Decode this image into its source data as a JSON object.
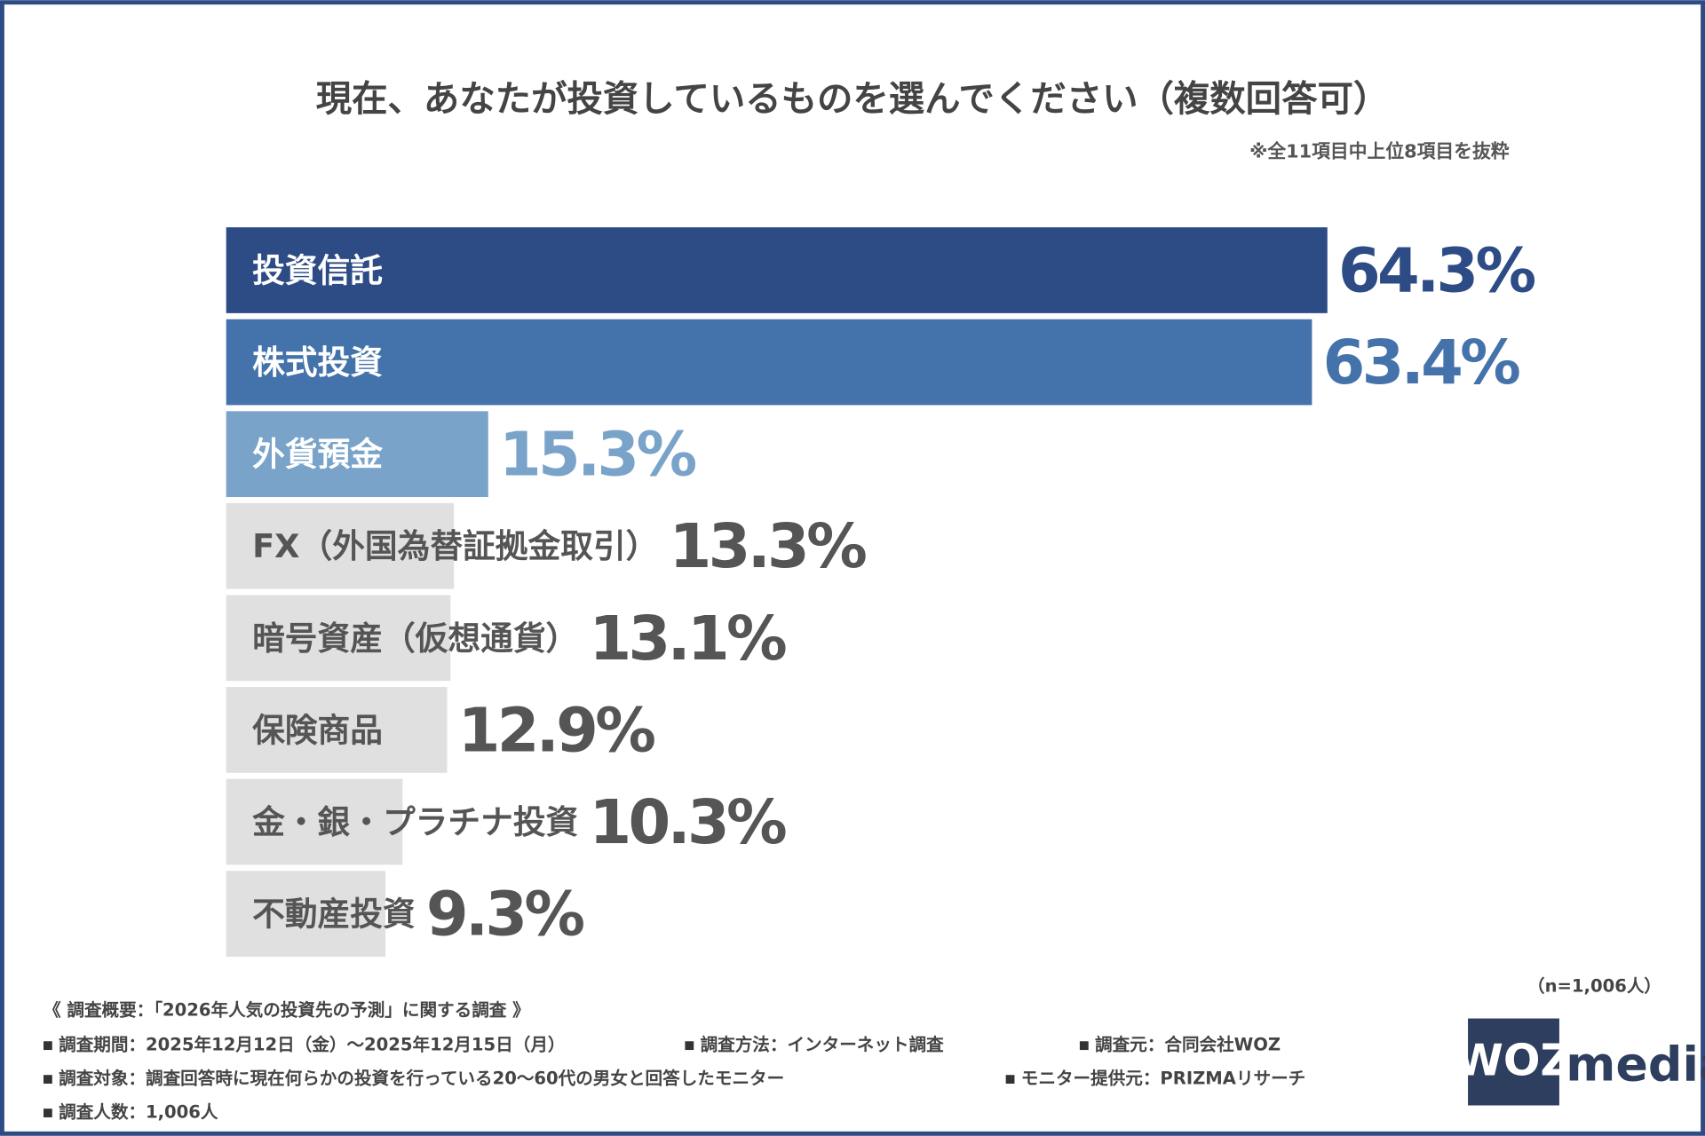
{
  "chart_data": {
    "type": "bar",
    "orientation": "horizontal",
    "title": "現在、あなたが投資しているものを選んでください（複数回答可）",
    "subtitle": "※全11項目中上位8項目を抜粋",
    "categories": [
      "投資信託",
      "株式投資",
      "外貨預金",
      "FX（外国為替証拠金取引）",
      "暗号資産（仮想通貨）",
      "保険商品",
      "金・銀・プラチナ投資",
      "不動産投資"
    ],
    "values": [
      64.3,
      63.4,
      15.3,
      13.3,
      13.1,
      12.9,
      10.3,
      9.3
    ],
    "value_labels": [
      "64.3%",
      "63.4%",
      "15.3%",
      "13.3%",
      "13.1%",
      "12.9%",
      "10.3%",
      "9.3%"
    ],
    "colors": [
      "#2d4b85",
      "#4472aa",
      "#7aa3c9",
      "#e0e0e0",
      "#e0e0e0",
      "#e0e0e0",
      "#e0e0e0",
      "#e0e0e0"
    ],
    "sample_size": "（n=1,006人）"
  },
  "footer": {
    "heading": "《 調査概要：「2026年人気の投資先の予測」に関する調査 》",
    "items": [
      "調査期間：2025年12月12日（金）〜2025年12月15日（月）",
      "調査方法：インターネット調査",
      "調査元：合同会社WOZ",
      "調査対象：調査回答時に現在何らかの投資を行っている20〜60代の男女と回答したモニター",
      "モニター提供元：PRIZMAリサーチ",
      "調査人数：1,006人"
    ]
  },
  "logo": {
    "mark": "WOZ",
    "text": "media"
  }
}
